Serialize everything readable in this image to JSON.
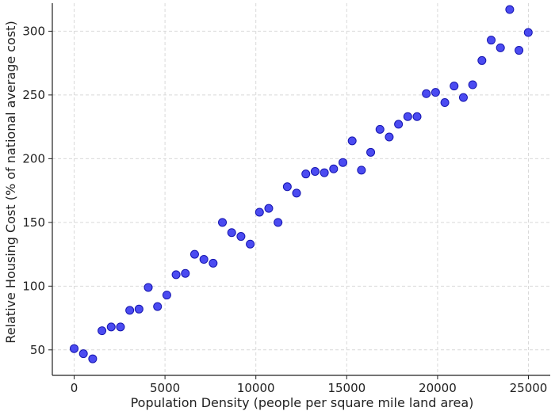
{
  "chart_data": {
    "type": "scatter",
    "title": "",
    "xlabel": "Population Density (people per square mile land area)",
    "ylabel": "Relative Housing Cost (% of national average cost)",
    "xlim": [
      -1200,
      26200
    ],
    "ylim": [
      30,
      322
    ],
    "xticks": [
      0,
      5000,
      10000,
      15000,
      20000,
      25000
    ],
    "yticks": [
      50,
      100,
      150,
      200,
      250,
      300
    ],
    "grid": true,
    "legend": "none",
    "colors": {
      "point": "#2b2bef",
      "point_edge": "#1515b0"
    },
    "points": [
      {
        "x": 0,
        "y": 51
      },
      {
        "x": 510,
        "y": 47
      },
      {
        "x": 1020,
        "y": 43
      },
      {
        "x": 1530,
        "y": 65
      },
      {
        "x": 2040,
        "y": 68
      },
      {
        "x": 2550,
        "y": 68
      },
      {
        "x": 3060,
        "y": 81
      },
      {
        "x": 3570,
        "y": 82
      },
      {
        "x": 4080,
        "y": 99
      },
      {
        "x": 4590,
        "y": 84
      },
      {
        "x": 5100,
        "y": 93
      },
      {
        "x": 5610,
        "y": 109
      },
      {
        "x": 6120,
        "y": 110
      },
      {
        "x": 6630,
        "y": 125
      },
      {
        "x": 7140,
        "y": 121
      },
      {
        "x": 7650,
        "y": 118
      },
      {
        "x": 8160,
        "y": 150
      },
      {
        "x": 8670,
        "y": 142
      },
      {
        "x": 9180,
        "y": 139
      },
      {
        "x": 9690,
        "y": 133
      },
      {
        "x": 10200,
        "y": 158
      },
      {
        "x": 10710,
        "y": 161
      },
      {
        "x": 11220,
        "y": 150
      },
      {
        "x": 11730,
        "y": 178
      },
      {
        "x": 12240,
        "y": 173
      },
      {
        "x": 12750,
        "y": 188
      },
      {
        "x": 13260,
        "y": 190
      },
      {
        "x": 13770,
        "y": 189
      },
      {
        "x": 14280,
        "y": 192
      },
      {
        "x": 14790,
        "y": 197
      },
      {
        "x": 15300,
        "y": 214
      },
      {
        "x": 15810,
        "y": 191
      },
      {
        "x": 16320,
        "y": 205
      },
      {
        "x": 16830,
        "y": 223
      },
      {
        "x": 17340,
        "y": 217
      },
      {
        "x": 17850,
        "y": 227
      },
      {
        "x": 18360,
        "y": 233
      },
      {
        "x": 18870,
        "y": 233
      },
      {
        "x": 19380,
        "y": 251
      },
      {
        "x": 19890,
        "y": 252
      },
      {
        "x": 20400,
        "y": 244
      },
      {
        "x": 20910,
        "y": 257
      },
      {
        "x": 21420,
        "y": 248
      },
      {
        "x": 21930,
        "y": 258
      },
      {
        "x": 22440,
        "y": 277
      },
      {
        "x": 22950,
        "y": 293
      },
      {
        "x": 23460,
        "y": 287
      },
      {
        "x": 23970,
        "y": 317
      },
      {
        "x": 24480,
        "y": 285
      },
      {
        "x": 24990,
        "y": 299
      }
    ]
  }
}
